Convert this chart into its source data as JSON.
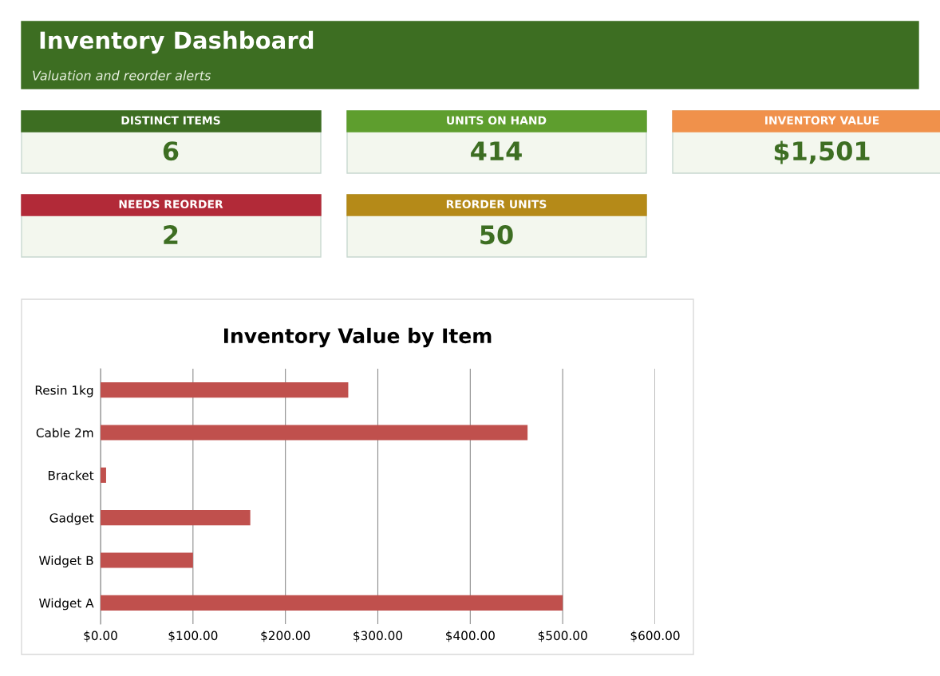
{
  "chart_data": [
    {
      "type": "other",
      "title": "Inventory Dashboard",
      "subtitle": "Valuation and reorder alerts",
      "categories": [
        "DISTINCT ITEMS",
        "UNITS ON HAND",
        "INVENTORY VALUE",
        "NEEDS REORDER",
        "REORDER UNITS"
      ],
      "value_labels": [
        "6",
        "414",
        "$1,501",
        "2",
        "50"
      ],
      "colors": [
        "#3d6e22",
        "#5e9e2e",
        "#f0914b",
        "#b22a38",
        "#b58a18"
      ]
    },
    {
      "type": "bar",
      "title": "Inventory Value by Item",
      "orientation": "horizontal",
      "categories": [
        "Resin 1kg",
        "Cable 2m",
        "Bracket",
        "Gadget",
        "Widget B",
        "Widget A"
      ],
      "values": [
        268,
        462,
        6,
        162,
        100,
        500
      ],
      "color": "#c0504d",
      "xlim": [
        0,
        600
      ],
      "xticks": [
        {
          "value": 0,
          "label": "$0.00"
        },
        {
          "value": 100,
          "label": "$100.00"
        },
        {
          "value": 200,
          "label": "$200.00"
        },
        {
          "value": 300,
          "label": "$300.00"
        },
        {
          "value": 400,
          "label": "$400.00"
        },
        {
          "value": 500,
          "label": "$500.00"
        },
        {
          "value": 600,
          "label": "$600.00"
        }
      ],
      "grid": "x"
    }
  ]
}
